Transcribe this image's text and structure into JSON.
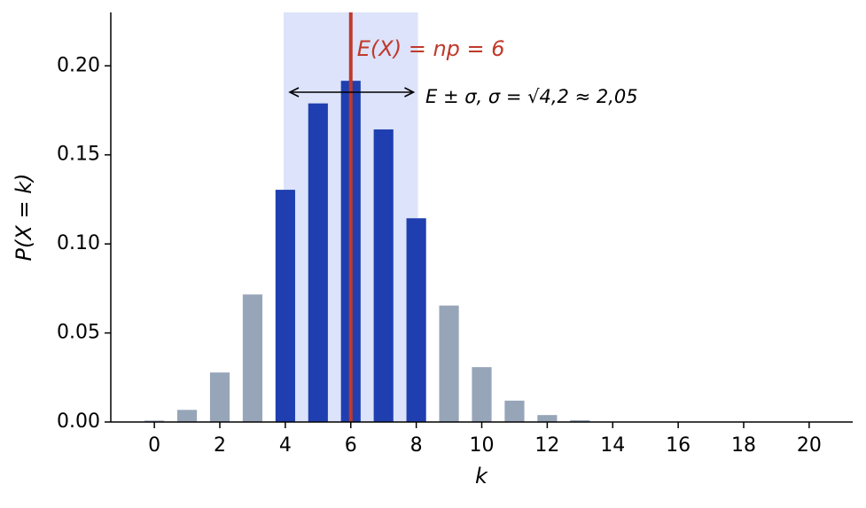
{
  "chart_data": {
    "type": "bar",
    "x_label": "k",
    "y_label": "P(X = k)",
    "categories": [
      0,
      1,
      2,
      3,
      4,
      5,
      6,
      7,
      8,
      9,
      10,
      11,
      12,
      13,
      14,
      15,
      16,
      17,
      18,
      19,
      20
    ],
    "values": [
      0.0008,
      0.0068,
      0.0278,
      0.0716,
      0.1304,
      0.1789,
      0.1916,
      0.1643,
      0.1144,
      0.0654,
      0.0308,
      0.012,
      0.0039,
      0.001,
      0.0002,
      0,
      0,
      0,
      0,
      0,
      0
    ],
    "colors": [
      "#97a5b9",
      "#97a5b9",
      "#97a5b9",
      "#97a5b9",
      "#1f3fb0",
      "#1f3fb0",
      "#1f3fb0",
      "#1f3fb0",
      "#1f3fb0",
      "#97a5b9",
      "#97a5b9",
      "#97a5b9",
      "#97a5b9",
      "#97a5b9",
      "#97a5b9",
      "#97a5b9",
      "#97a5b9",
      "#97a5b9",
      "#97a5b9",
      "#97a5b9",
      "#97a5b9"
    ],
    "xlim": [
      -1.33,
      21.33
    ],
    "xticks": [
      0,
      2,
      4,
      6,
      8,
      10,
      12,
      14,
      16,
      18,
      20
    ],
    "ylim": [
      0,
      0.23
    ],
    "yticks": [
      {
        "value": 0,
        "label": "0.00"
      },
      {
        "value": 0.05,
        "label": "0.05"
      },
      {
        "value": 0.1,
        "label": "0.10"
      },
      {
        "value": 0.15,
        "label": "0.15"
      },
      {
        "value": 0.2,
        "label": "0.20"
      }
    ],
    "mean_line": {
      "x": 6,
      "color": "#c0392b",
      "label": "E(X) = np = 6"
    },
    "sigma_band": {
      "x": [
        3.95,
        8.05
      ],
      "color": "#dce3fa",
      "label": "E ± σ, σ = √4,2 ≈ 2,05"
    }
  }
}
